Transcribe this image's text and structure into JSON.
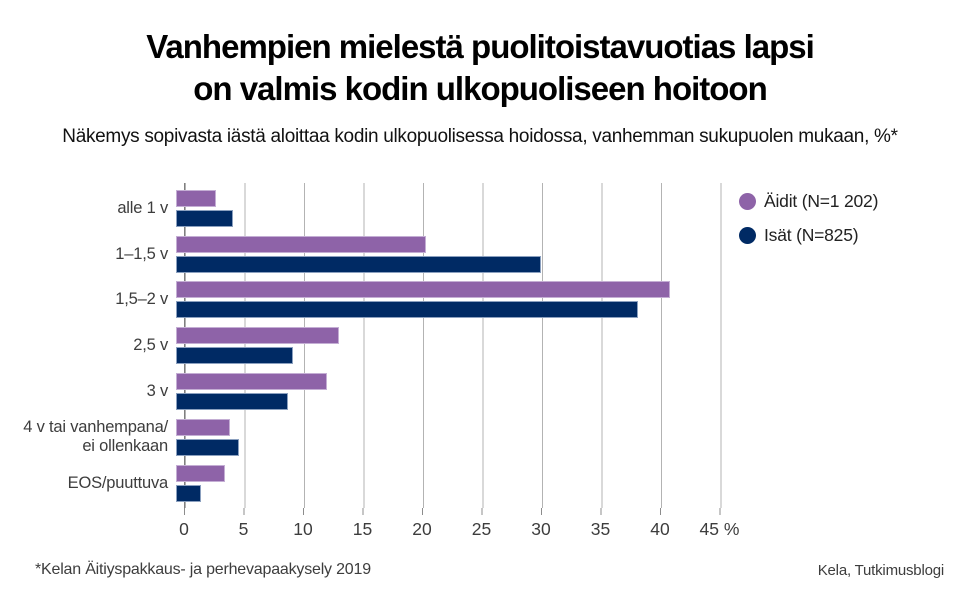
{
  "header": {
    "title": "Vanhempien mielestä puolitoistavuotias lapsi\non valmis kodin ulkopuoliseen hoitoon",
    "subtitle": "Näkemys sopivasta iästä aloittaa kodin ulkopuolisessa hoidossa, vanhemman sukupuolen mukaan, %*"
  },
  "chart_data": {
    "type": "bar",
    "orientation": "horizontal",
    "title": "Vanhempien mielestä puolitoistavuotias lapsi on valmis kodin ulkopuoliseen hoitoon",
    "subtitle": "Näkemys sopivasta iästä aloittaa kodin ulkopuolisessa hoidossa, vanhemman sukupuolen mukaan, %*",
    "categories": [
      "alle 1 v",
      "1–1,5 v",
      "1,5–2 v",
      "2,5 v",
      "3 v",
      "4 v tai vanhempana/\nei ollenkaan",
      "EOS/puuttuva"
    ],
    "series": [
      {
        "name": "Äidit (N=1 202)",
        "color": "#8E63A8",
        "border_color": "#C4AED4",
        "values": [
          3.4,
          21.0,
          41.5,
          13.7,
          12.7,
          4.5,
          4.1
        ]
      },
      {
        "name": "Isät (N=825)",
        "color": "#002A64",
        "border_color": "#8BA0BF",
        "values": [
          4.8,
          30.7,
          38.8,
          9.8,
          9.4,
          5.3,
          2.1
        ]
      }
    ],
    "x_ticks": [
      0,
      5,
      10,
      15,
      20,
      25,
      30,
      35,
      40,
      45
    ],
    "x_suffix": "%",
    "xlim": [
      0,
      47.5
    ],
    "grid": "vertical",
    "legend_position": "top-right",
    "gridline_color": "#b3b3b3",
    "axis_color": "#7f7f7f"
  },
  "footer": {
    "source_note": "*Kelan Äitiyspakkaus- ja perhevapaakysely 2019",
    "credit": "Kela, Tutkimusblogi"
  }
}
